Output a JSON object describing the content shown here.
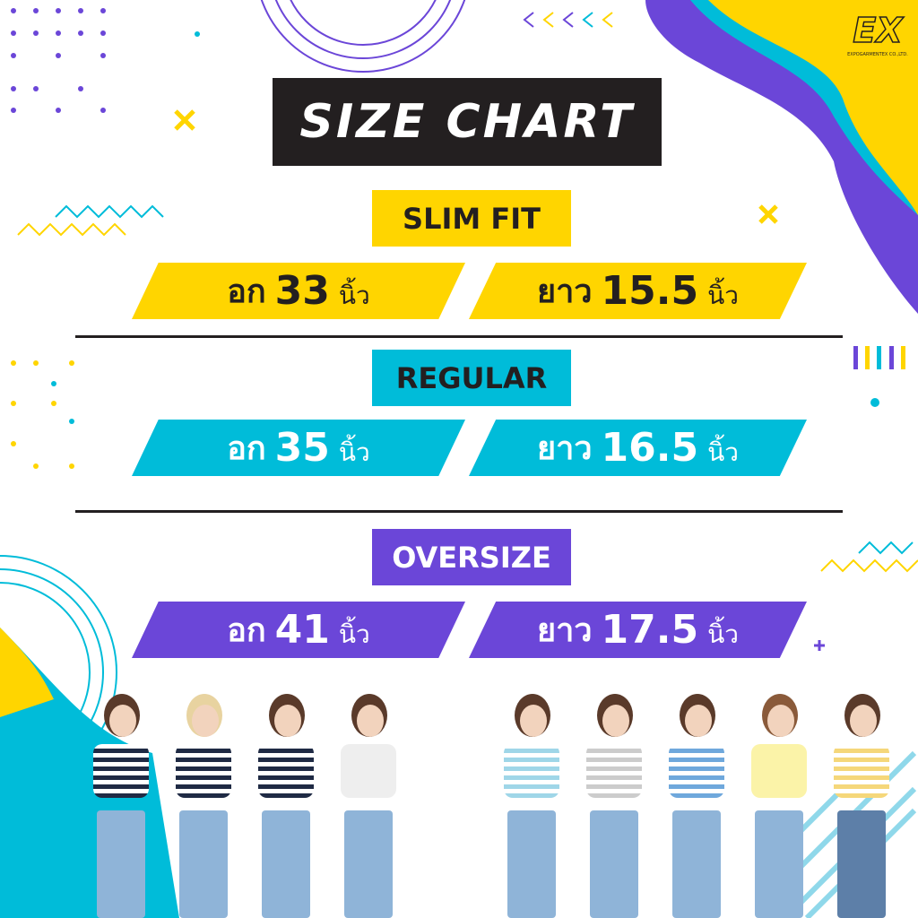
{
  "brand": {
    "logo_text": "EXPOGARMENTEX CO.,LTD.",
    "logo_mark": "EX"
  },
  "title": "SIZE CHART",
  "colors": {
    "yellow": "#FFD500",
    "cyan": "#00BCD9",
    "purple": "#6B46D8",
    "dark": "#231f20"
  },
  "sizes": [
    {
      "name": "SLIM FIT",
      "chest_label": "อก",
      "chest": "33",
      "length_label": "ยาว",
      "length": "15.5",
      "unit": "นิ้ว"
    },
    {
      "name": "REGULAR",
      "chest_label": "อก",
      "chest": "35",
      "length_label": "ยาว",
      "length": "16.5",
      "unit": "นิ้ว"
    },
    {
      "name": "OVERSIZE",
      "chest_label": "อก",
      "chest": "41",
      "length_label": "ยาว",
      "length": "17.5",
      "unit": "นิ้ว"
    }
  ]
}
